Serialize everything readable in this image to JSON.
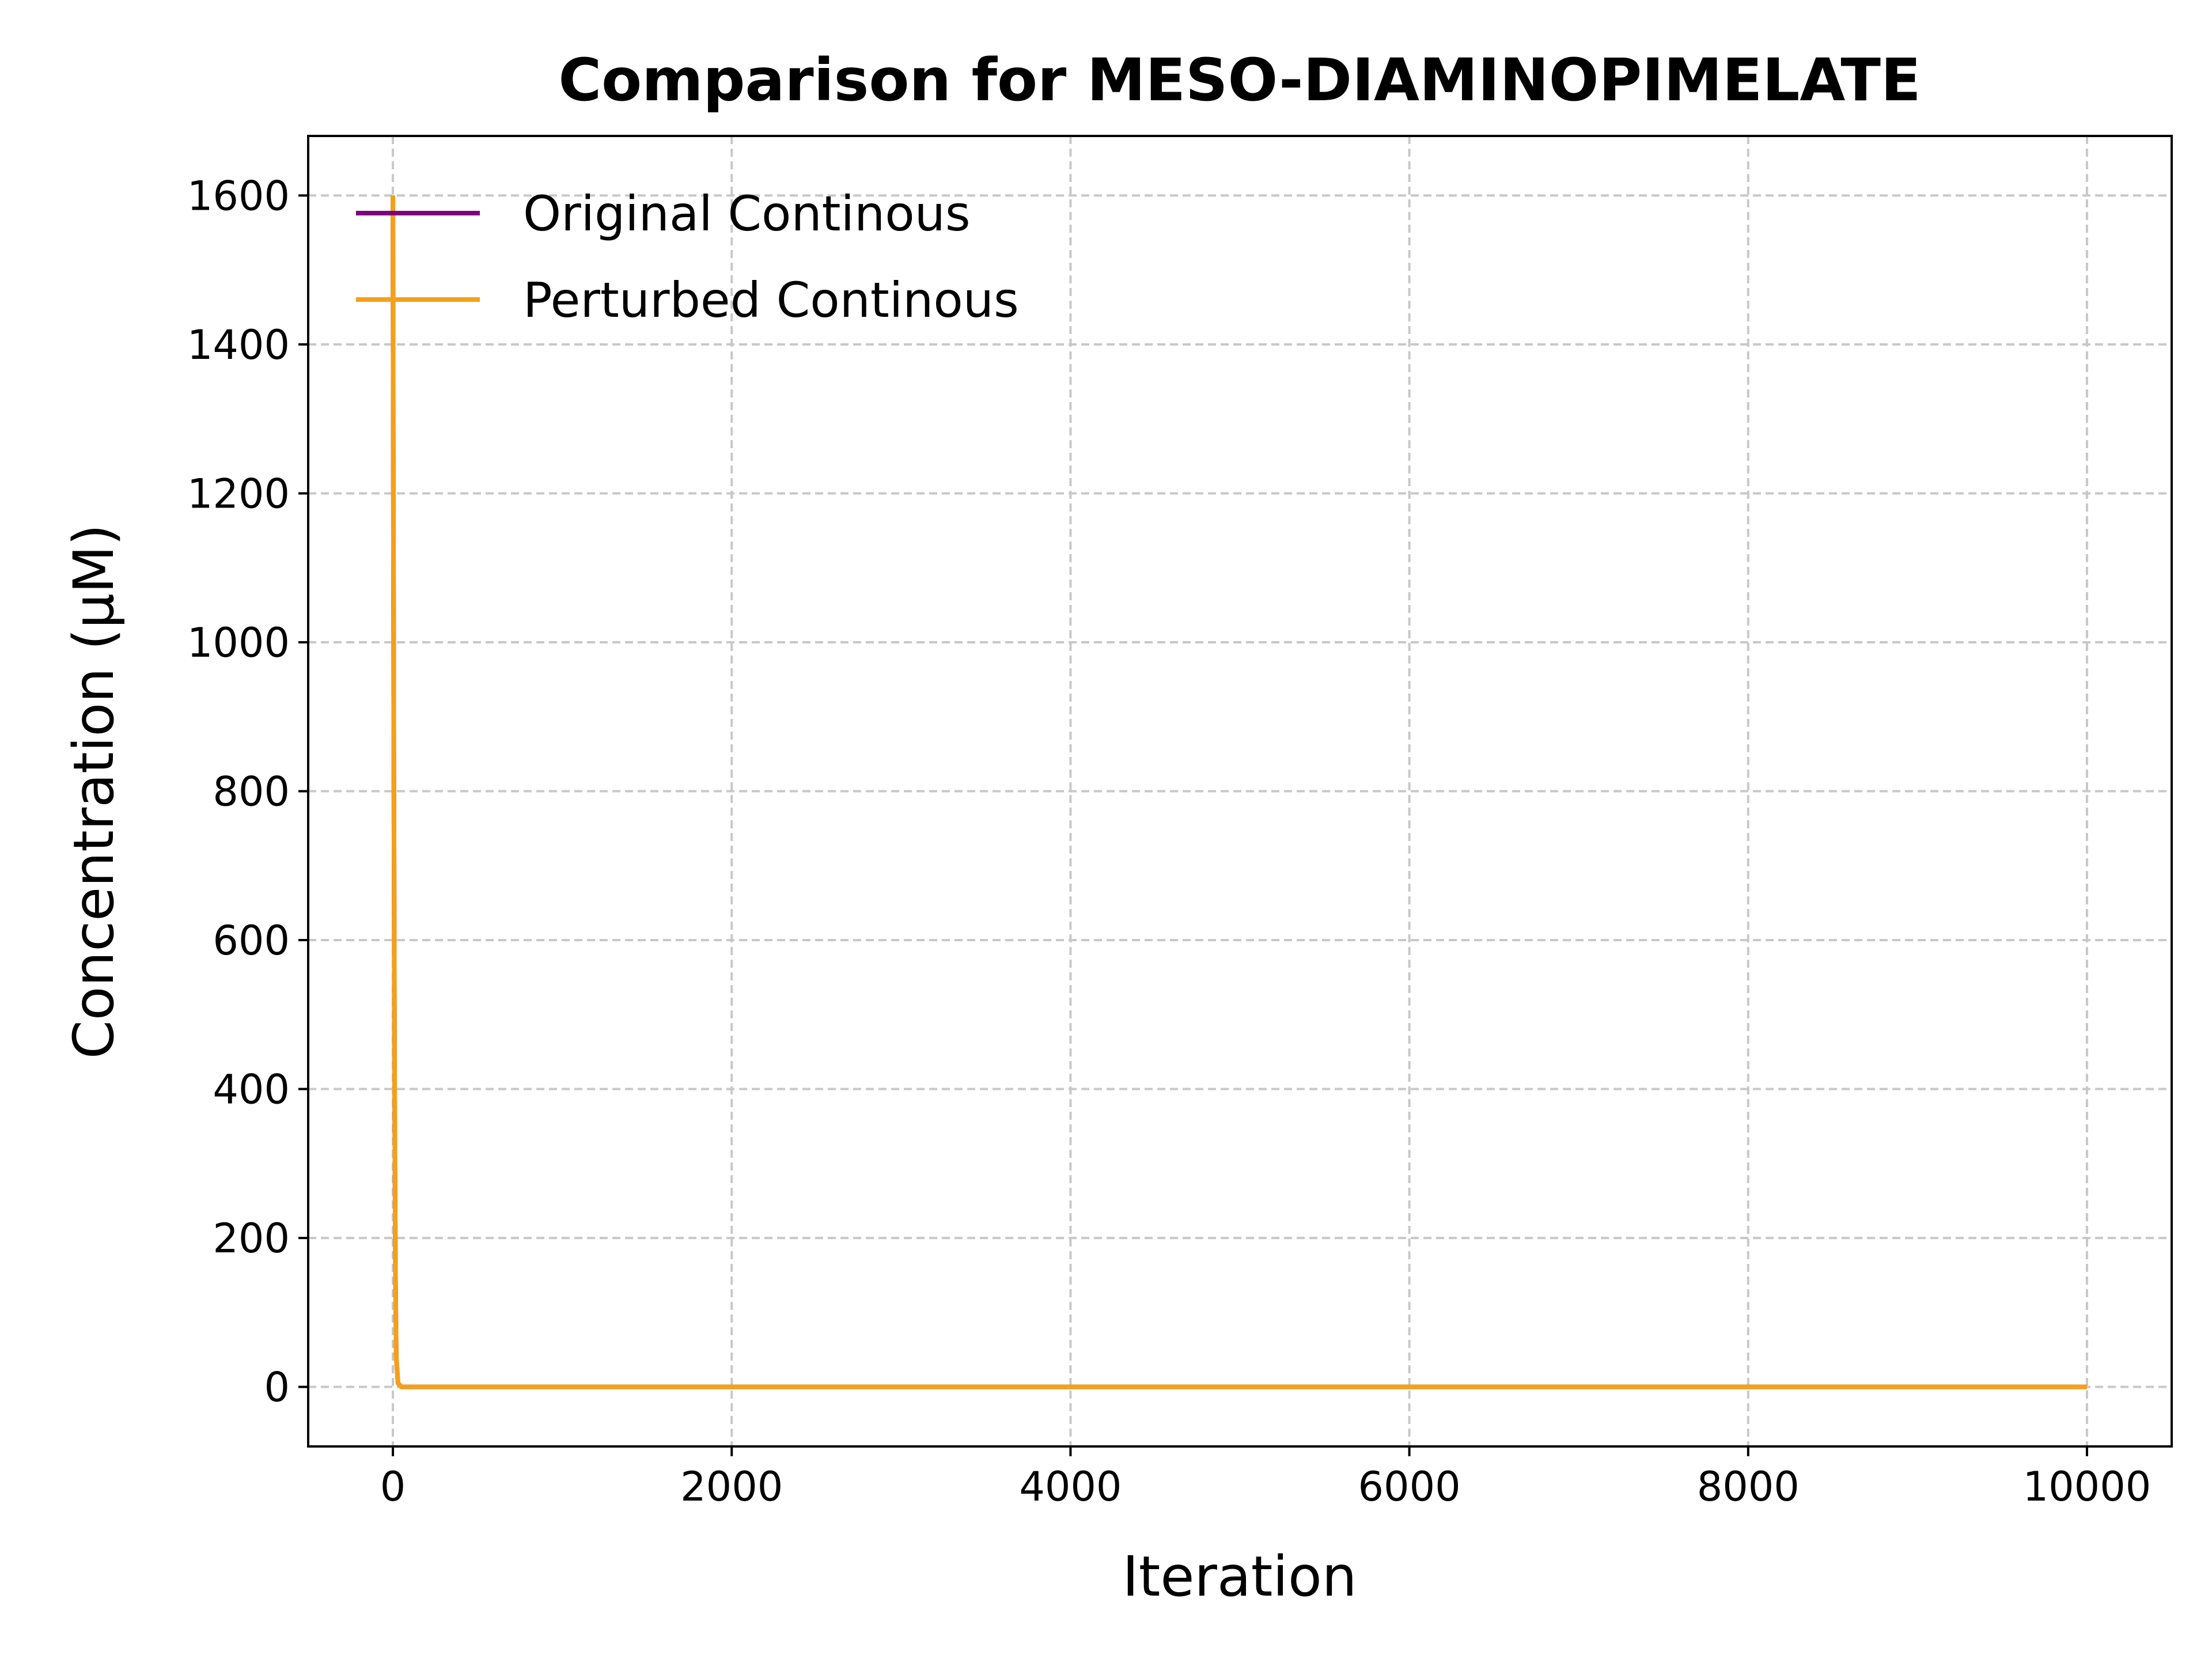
{
  "chart_data": {
    "type": "line",
    "title": "Comparison for MESO-DIAMINOPIMELATE",
    "xlabel": "Iteration",
    "ylabel": "Concentration (μM)",
    "xlim": [
      -500,
      10500
    ],
    "ylim": [
      -80,
      1680
    ],
    "x_ticks": [
      0,
      2000,
      4000,
      6000,
      8000,
      10000
    ],
    "y_ticks": [
      0,
      200,
      400,
      600,
      800,
      1000,
      1200,
      1400,
      1600
    ],
    "grid": true,
    "legend_position": "top-left",
    "series": [
      {
        "name": "Original Continous",
        "color": "#800080",
        "x": [
          0,
          5,
          10,
          15,
          20,
          30,
          50,
          100,
          1000,
          5000,
          10000
        ],
        "y": [
          1600,
          900,
          400,
          150,
          40,
          5,
          0,
          0,
          0,
          0,
          0
        ]
      },
      {
        "name": "Perturbed Continous",
        "color": "#f5a01a",
        "x": [
          0,
          5,
          10,
          15,
          20,
          30,
          50,
          100,
          1000,
          5000,
          10000
        ],
        "y": [
          1600,
          900,
          400,
          150,
          40,
          5,
          0,
          0,
          0,
          0,
          0
        ]
      }
    ]
  }
}
